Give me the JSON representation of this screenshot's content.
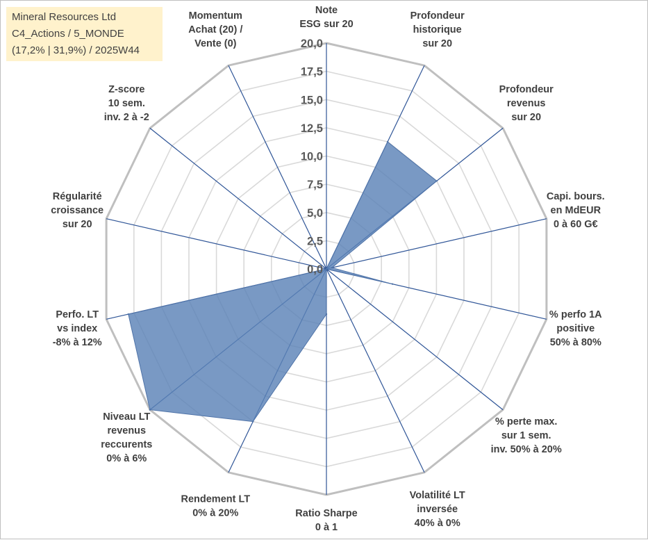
{
  "info_box": {
    "line1": "Mineral Resources Ltd",
    "line2": "C4_Actions / 5_MONDE",
    "line3": "(17,2% | 31,9%) / 2025W44"
  },
  "colors": {
    "area_fill": "#5b82b7",
    "area_stroke": "#4f73a8",
    "spoke": "#2f5597",
    "grid": "#d9d9d9",
    "outer_ring": "#bfbfbf",
    "info_box_bg": "#fff2cc"
  },
  "chart_data": {
    "type": "radar",
    "rmin": 0,
    "rmax": 20,
    "grid_step": 2.5,
    "tick_labels": [
      "0,0",
      "2,5",
      "5,0",
      "7,5",
      "10,0",
      "12,5",
      "15,0",
      "17,5",
      "20,0"
    ],
    "axes": [
      [
        "Note",
        "ESG sur 20"
      ],
      [
        "Profondeur",
        "historique",
        "sur 20"
      ],
      [
        "Profondeur",
        "revenus",
        "sur 20"
      ],
      [
        "Capi. bours.",
        "en MdEUR",
        "0 à 60 G€"
      ],
      [
        "% perfo 1A",
        "positive",
        "50% à 80%"
      ],
      [
        "% perte max.",
        "sur 1 sem.",
        "inv. 50% à 20%"
      ],
      [
        "Volatilité LT",
        "inversée",
        "40% à 0%"
      ],
      [
        "Ratio Sharpe",
        "0 à 1"
      ],
      [
        "Rendement LT",
        "0% à 20%"
      ],
      [
        "Niveau LT",
        "revenus",
        "reccurents",
        "0% à 6%"
      ],
      [
        "Perfo. LT",
        "vs index",
        "-8% à 12%"
      ],
      [
        "Régularité",
        "croissance",
        "sur 20"
      ],
      [
        "Z-score",
        "10 sem.",
        "inv. 2 à -2"
      ],
      [
        "Momentum",
        "Achat (20) /",
        "Vente (0)"
      ]
    ],
    "series": [
      {
        "values": [
          0,
          12.5,
          12.5,
          0.5,
          6,
          0,
          0,
          4,
          15,
          20,
          18,
          0,
          0,
          0
        ]
      }
    ]
  }
}
